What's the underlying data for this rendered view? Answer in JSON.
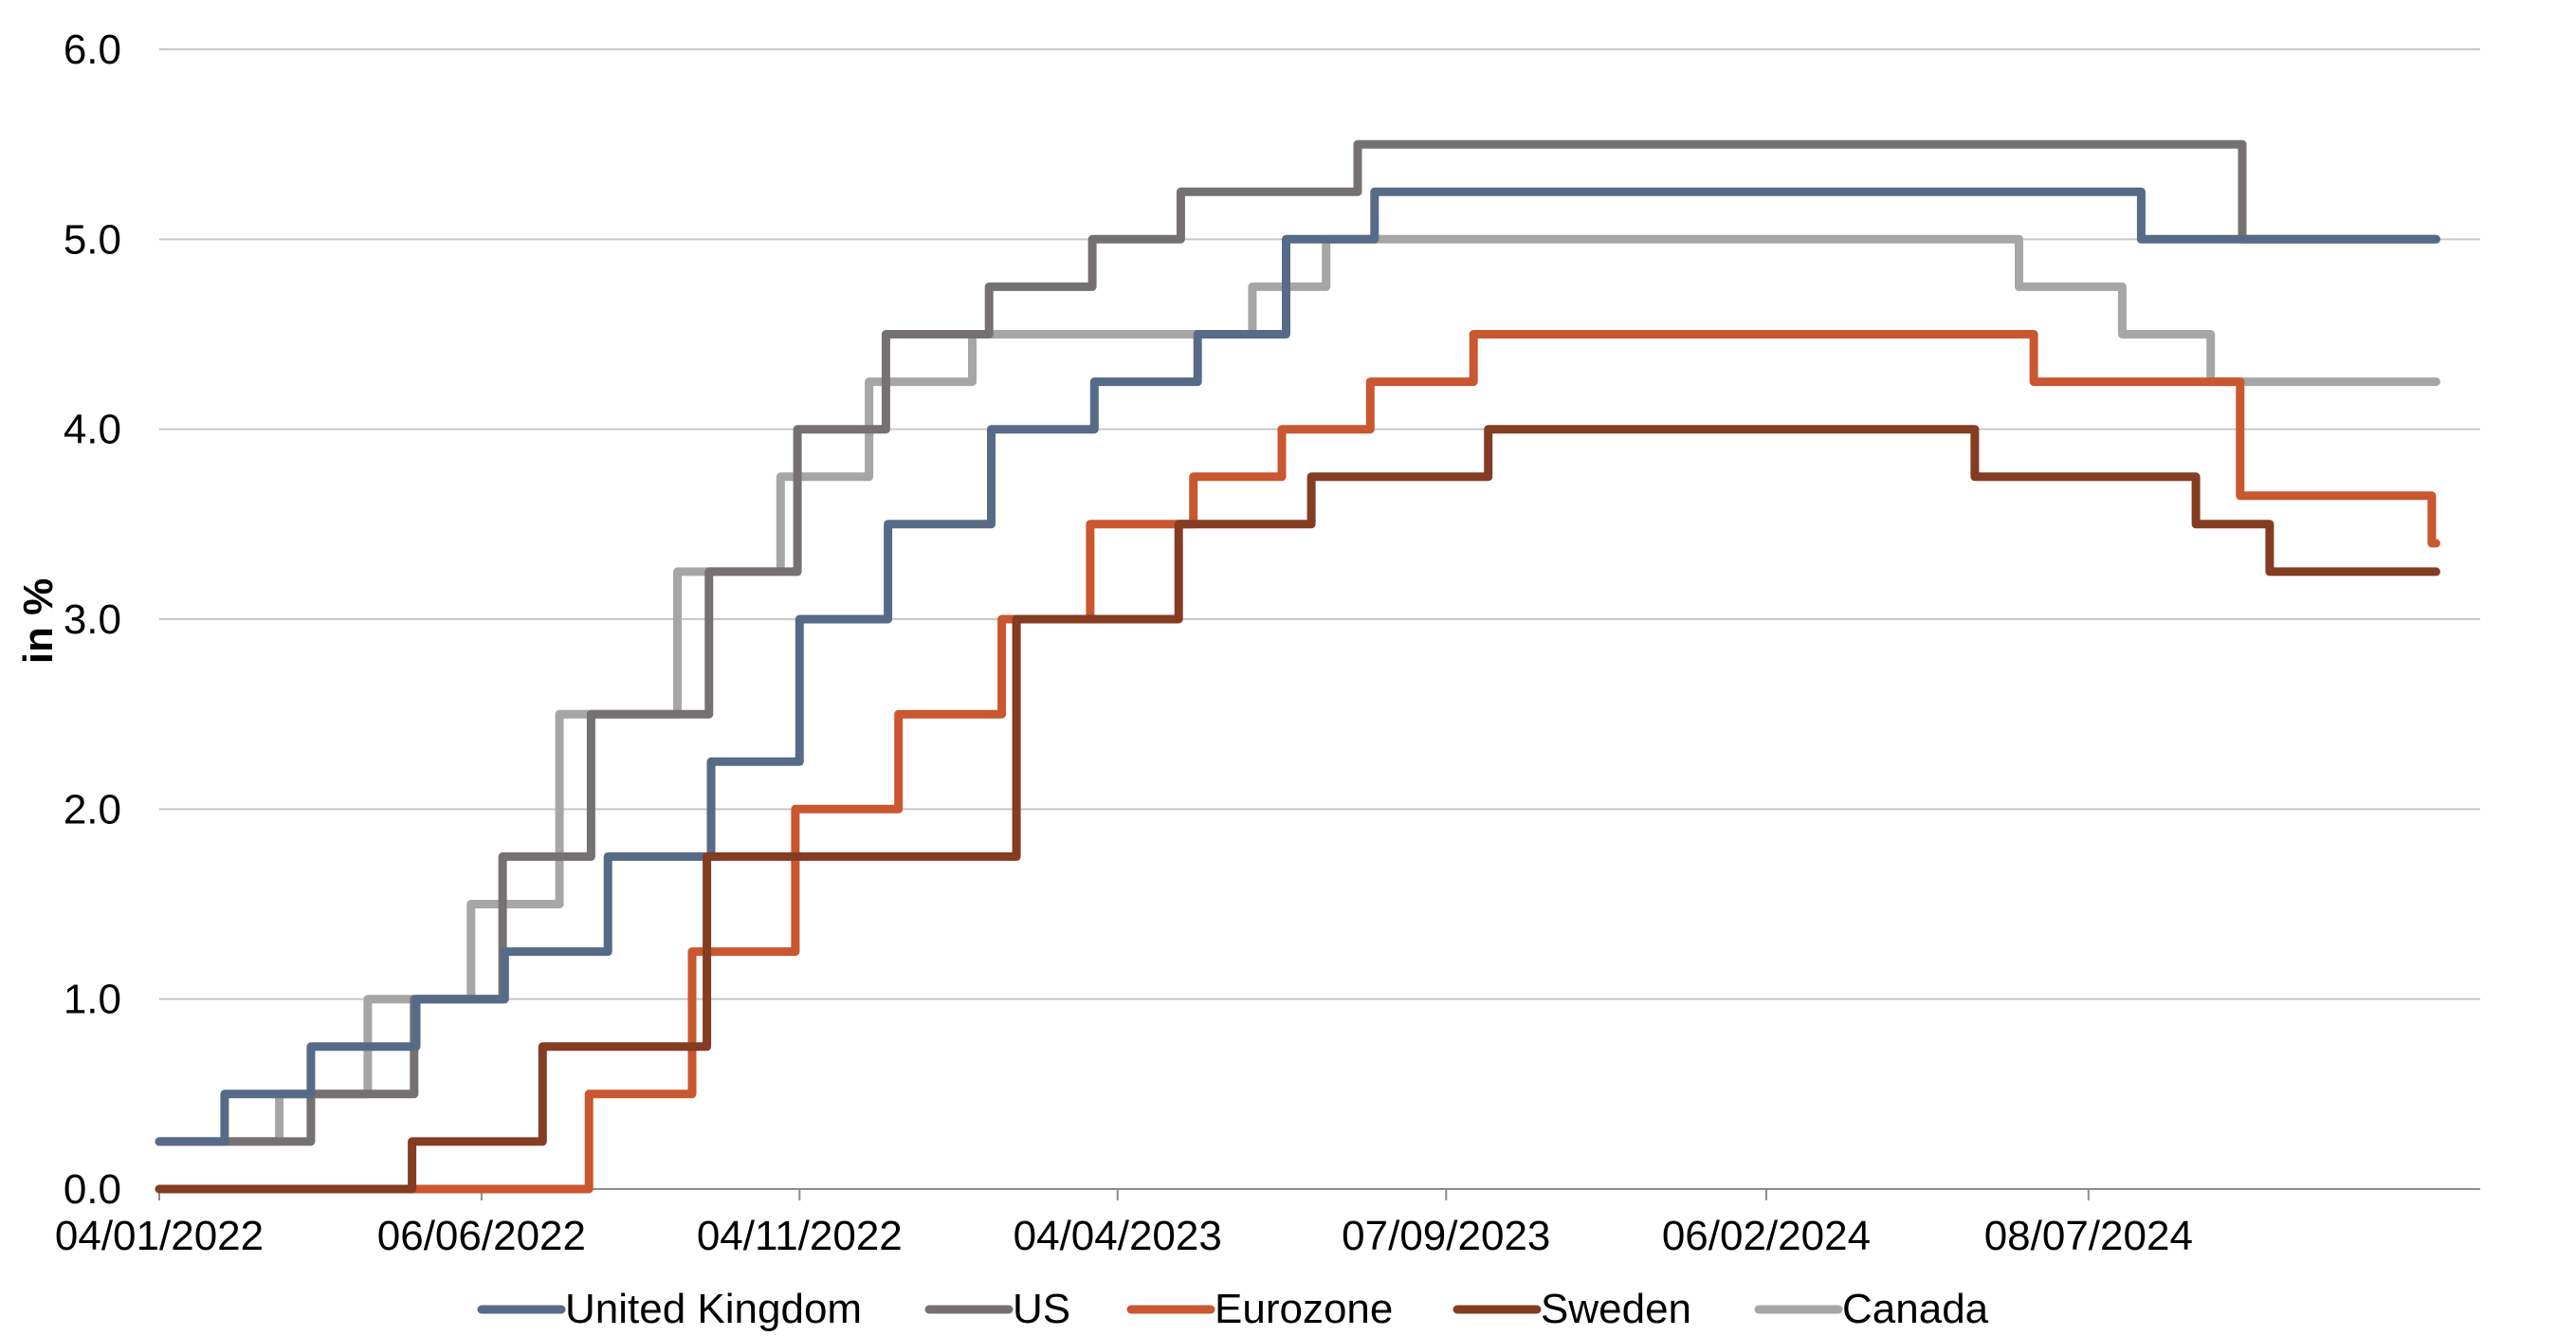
{
  "chart_data": {
    "type": "line",
    "step": true,
    "ylabel": "in %",
    "xlabel": "",
    "title": "",
    "ylim": [
      0,
      6
    ],
    "yticks": [
      "0.0",
      "1.0",
      "2.0",
      "3.0",
      "4.0",
      "5.0",
      "6.0"
    ],
    "xlim": [
      "2022-01-04",
      "2025-01-10"
    ],
    "xticks": [
      {
        "date": "2022-01-04",
        "label": "04/01/2022"
      },
      {
        "date": "2022-06-06",
        "label": "06/06/2022"
      },
      {
        "date": "2022-11-04",
        "label": "04/11/2022"
      },
      {
        "date": "2023-04-04",
        "label": "04/04/2023"
      },
      {
        "date": "2023-09-07",
        "label": "07/09/2023"
      },
      {
        "date": "2024-02-06",
        "label": "06/02/2024"
      },
      {
        "date": "2024-07-08",
        "label": "08/07/2024"
      }
    ],
    "grid": true,
    "legend_position": "bottom",
    "end_date": "2024-12-20",
    "series": [
      {
        "name": "United Kingdom",
        "color": "#566b87",
        "steps": [
          [
            "2022-01-04",
            0.25
          ],
          [
            "2022-02-04",
            0.5
          ],
          [
            "2022-03-17",
            0.75
          ],
          [
            "2022-05-06",
            1.0
          ],
          [
            "2022-06-17",
            1.25
          ],
          [
            "2022-08-05",
            1.75
          ],
          [
            "2022-09-23",
            2.25
          ],
          [
            "2022-11-04",
            3.0
          ],
          [
            "2022-12-16",
            3.5
          ],
          [
            "2023-02-03",
            4.0
          ],
          [
            "2023-03-24",
            4.25
          ],
          [
            "2023-05-12",
            4.5
          ],
          [
            "2023-06-23",
            5.0
          ],
          [
            "2023-08-04",
            5.25
          ],
          [
            "2024-08-02",
            5.0
          ]
        ]
      },
      {
        "name": "US",
        "color": "#767171",
        "steps": [
          [
            "2022-01-04",
            0.25
          ],
          [
            "2022-03-17",
            0.5
          ],
          [
            "2022-05-05",
            1.0
          ],
          [
            "2022-06-16",
            1.75
          ],
          [
            "2022-07-28",
            2.5
          ],
          [
            "2022-09-22",
            3.25
          ],
          [
            "2022-11-03",
            4.0
          ],
          [
            "2022-12-15",
            4.5
          ],
          [
            "2023-02-02",
            4.75
          ],
          [
            "2023-03-23",
            5.0
          ],
          [
            "2023-05-04",
            5.25
          ],
          [
            "2023-07-27",
            5.5
          ],
          [
            "2024-09-19",
            5.0
          ]
        ]
      },
      {
        "name": "Eurozone",
        "color": "#c9572f",
        "steps": [
          [
            "2022-01-04",
            0.0
          ],
          [
            "2022-07-27",
            0.5
          ],
          [
            "2022-09-14",
            1.25
          ],
          [
            "2022-11-02",
            2.0
          ],
          [
            "2022-12-21",
            2.5
          ],
          [
            "2023-02-08",
            3.0
          ],
          [
            "2023-03-22",
            3.5
          ],
          [
            "2023-05-10",
            3.75
          ],
          [
            "2023-06-21",
            4.0
          ],
          [
            "2023-08-02",
            4.25
          ],
          [
            "2023-09-20",
            4.5
          ],
          [
            "2024-06-12",
            4.25
          ],
          [
            "2024-09-18",
            3.65
          ],
          [
            "2024-12-18",
            3.4
          ]
        ]
      },
      {
        "name": "Sweden",
        "color": "#843c22",
        "steps": [
          [
            "2022-01-04",
            0.0
          ],
          [
            "2022-05-04",
            0.25
          ],
          [
            "2022-07-05",
            0.75
          ],
          [
            "2022-09-21",
            1.75
          ],
          [
            "2023-02-15",
            3.0
          ],
          [
            "2023-05-03",
            3.5
          ],
          [
            "2023-07-05",
            3.75
          ],
          [
            "2023-09-27",
            4.0
          ],
          [
            "2024-05-15",
            3.75
          ],
          [
            "2024-08-28",
            3.5
          ],
          [
            "2024-10-02",
            3.25
          ]
        ]
      },
      {
        "name": "Canada",
        "color": "#a6a6a6",
        "steps": [
          [
            "2022-01-04",
            0.25
          ],
          [
            "2022-03-02",
            0.5
          ],
          [
            "2022-04-13",
            1.0
          ],
          [
            "2022-06-01",
            1.5
          ],
          [
            "2022-07-13",
            2.5
          ],
          [
            "2022-09-07",
            3.25
          ],
          [
            "2022-10-26",
            3.75
          ],
          [
            "2022-12-07",
            4.25
          ],
          [
            "2023-01-25",
            4.5
          ],
          [
            "2023-06-07",
            4.75
          ],
          [
            "2023-07-12",
            5.0
          ],
          [
            "2024-06-05",
            4.75
          ],
          [
            "2024-07-24",
            4.5
          ],
          [
            "2024-09-04",
            4.25
          ]
        ]
      }
    ]
  }
}
